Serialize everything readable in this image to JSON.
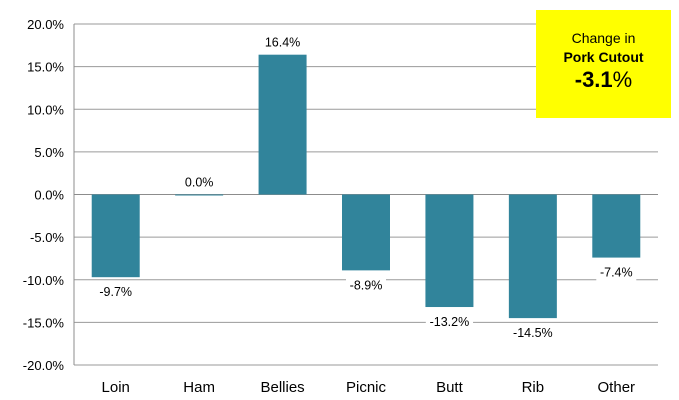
{
  "chart_data": {
    "type": "bar",
    "categories": [
      "Loin",
      "Ham",
      "Bellies",
      "Picnic",
      "Butt",
      "Rib",
      "Other"
    ],
    "values": [
      -9.7,
      0.0,
      16.4,
      -8.9,
      -13.2,
      -14.5,
      -7.4
    ],
    "data_labels": [
      "-9.7%",
      "0.0%",
      "16.4%",
      "-8.9%",
      "-13.2%",
      "-14.5%",
      "-7.4%"
    ],
    "ylim": [
      -20,
      20
    ],
    "yticks": [
      20,
      15,
      10,
      5,
      0,
      -5,
      -10,
      -15,
      -20
    ],
    "ytick_labels": [
      "20.0%",
      "15.0%",
      "10.0%",
      "5.0%",
      "0.0%",
      "-5.0%",
      "-10.0%",
      "-15.0%",
      "-20.0%"
    ],
    "grid": true,
    "bar_color": "#31849b"
  },
  "summary": {
    "line1": "Change in",
    "line2": "Pork Cutout",
    "value": "-3.1",
    "unit": "%",
    "background": "#ffff00"
  }
}
